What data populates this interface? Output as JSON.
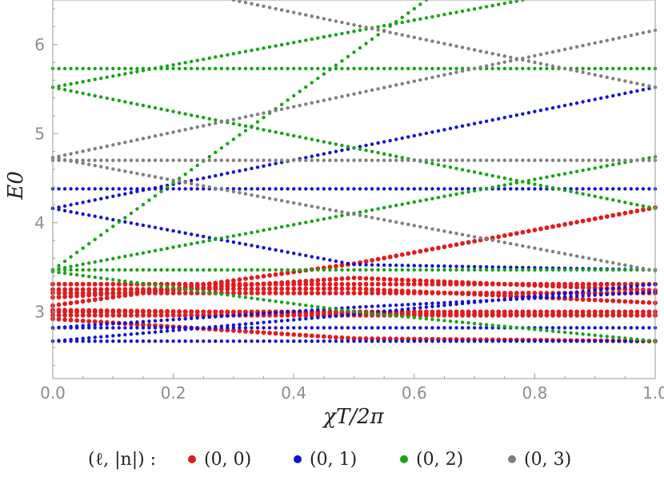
{
  "chart_data": {
    "type": "scatter",
    "title": "",
    "xlabel": "χT/2π",
    "ylabel": "E0",
    "xlim": [
      0,
      1
    ],
    "ylim": [
      2.25,
      6.5
    ],
    "x_ticks": [
      "0.0",
      "0.2",
      "0.4",
      "0.6",
      "0.8",
      "1.0"
    ],
    "y_ticks": [
      "3",
      "4",
      "5",
      "6"
    ],
    "grid": false,
    "legend": {
      "placement": "bottom",
      "title": "(ℓ, |n|) :",
      "entries": [
        "(0, 0)",
        "(0, 1)",
        "(0, 2)",
        "(0, 3)"
      ]
    },
    "colors": {
      "(0, 0)": "#e31a1c",
      "(0, 1)": "#1212d6",
      "(0, 2)": "#17a317",
      "(0, 3)": "#7f7f7f"
    },
    "series": [
      {
        "label": "(0, 0)",
        "lines": [
          {
            "x": [
              0,
              0.5,
              1
            ],
            "y": [
              3.07,
              3.54,
              4.17
            ]
          },
          {
            "x": [
              0,
              1
            ],
            "y": [
              3.31,
              3.31
            ]
          },
          {
            "x": [
              0,
              1
            ],
            "y": [
              3.21,
              3.21
            ]
          },
          {
            "x": [
              0,
              1
            ],
            "y": [
              3.0,
              3.0
            ]
          },
          {
            "x": [
              0,
              1
            ],
            "y": [
              2.96,
              2.96
            ]
          },
          {
            "x": [
              0,
              0.5,
              1
            ],
            "y": [
              2.92,
              2.7,
              2.67
            ]
          },
          {
            "x": [
              0,
              0.5,
              1
            ],
            "y": [
              3.16,
              3.38,
              3.24
            ]
          },
          {
            "x": [
              0,
              0.5,
              1
            ],
            "y": [
              3.25,
              3.26,
              3.1
            ]
          },
          {
            "x": [
              0,
              0.5,
              1
            ],
            "y": [
              3.02,
              2.98,
              2.96
            ]
          }
        ]
      },
      {
        "label": "(0, 1)",
        "lines": [
          {
            "x": [
              0,
              1
            ],
            "y": [
              4.16,
              5.52
            ]
          },
          {
            "x": [
              0,
              0.5,
              1
            ],
            "y": [
              4.16,
              3.53,
              3.47
            ]
          },
          {
            "x": [
              0,
              1
            ],
            "y": [
              4.38,
              4.38
            ]
          },
          {
            "x": [
              0,
              1
            ],
            "y": [
              2.82,
              2.82
            ]
          },
          {
            "x": [
              0,
              1
            ],
            "y": [
              2.67,
              2.67
            ]
          },
          {
            "x": [
              0,
              0.5,
              1
            ],
            "y": [
              2.67,
              2.97,
              3.31
            ]
          },
          {
            "x": [
              0,
              0.5,
              1
            ],
            "y": [
              2.82,
              3.05,
              3.22
            ]
          }
        ]
      },
      {
        "label": "(0, 2)",
        "lines": [
          {
            "x": [
              0,
              0.78
            ],
            "y": [
              5.52,
              6.5
            ]
          },
          {
            "x": [
              0,
              1
            ],
            "y": [
              5.52,
              4.16
            ]
          },
          {
            "x": [
              0,
              1
            ],
            "y": [
              5.73,
              5.73
            ]
          },
          {
            "x": [
              0,
              0.62
            ],
            "y": [
              3.47,
              6.5
            ]
          },
          {
            "x": [
              0,
              1
            ],
            "y": [
              3.47,
              4.74
            ]
          },
          {
            "x": [
              0,
              1
            ],
            "y": [
              3.47,
              3.47
            ]
          },
          {
            "x": [
              0,
              0.5,
              1
            ],
            "y": [
              3.45,
              3.0,
              2.67
            ]
          }
        ]
      },
      {
        "label": "(0, 3)",
        "lines": [
          {
            "x": [
              0.3,
              1
            ],
            "y": [
              6.5,
              5.52
            ]
          },
          {
            "x": [
              0,
              1
            ],
            "y": [
              4.73,
              6.16
            ]
          },
          {
            "x": [
              0,
              1
            ],
            "y": [
              4.7,
              4.7
            ]
          },
          {
            "x": [
              0,
              1
            ],
            "y": [
              4.73,
              3.46
            ]
          }
        ]
      }
    ]
  }
}
